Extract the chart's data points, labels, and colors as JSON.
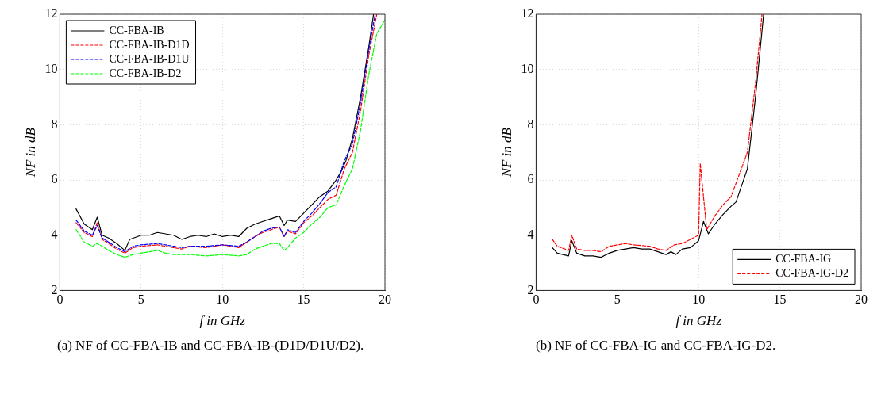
{
  "chart_data": [
    {
      "type": "line",
      "xlabel": "f in GHz",
      "ylabel": "NF in dB",
      "xlim": [
        0,
        20
      ],
      "ylim": [
        2,
        12
      ],
      "xticks": [
        0,
        5,
        10,
        15,
        20
      ],
      "yticks": [
        2,
        4,
        6,
        8,
        10,
        12
      ],
      "grid": true,
      "legend": "top left",
      "annotations": [
        "(a) NF of CC-FBA-IB and CC-FBA-IB-(D1D/D1U/D2)."
      ],
      "series": [
        {
          "name": "CC-FBA-IB",
          "color": "#000000",
          "line_style": "solid",
          "x": [
            1,
            1.5,
            2,
            2.3,
            2.6,
            3,
            3.5,
            4,
            4.3,
            5,
            5.5,
            6,
            6.5,
            7,
            7.5,
            8,
            8.5,
            9,
            9.5,
            10,
            10.5,
            11,
            11.5,
            12,
            12.5,
            13,
            13.5,
            13.8,
            14,
            14.5,
            15,
            15.5,
            16,
            16.5,
            17,
            17.3,
            17.6,
            18,
            18.5,
            19,
            19.3
          ],
          "values": [
            4.95,
            4.4,
            4.2,
            4.65,
            4.0,
            3.9,
            3.7,
            3.45,
            3.85,
            4.0,
            4.0,
            4.1,
            4.05,
            4.0,
            3.85,
            3.95,
            4.0,
            3.95,
            4.05,
            3.95,
            4.0,
            3.95,
            4.25,
            4.4,
            4.5,
            4.6,
            4.7,
            4.35,
            4.55,
            4.5,
            4.8,
            5.1,
            5.4,
            5.6,
            6.0,
            6.3,
            6.7,
            7.5,
            9.0,
            10.8,
            12
          ]
        },
        {
          "name": "CC-FBA-IB-D1D",
          "color": "#ff0000",
          "line_style": "dashed",
          "x": [
            1,
            1.5,
            2,
            2.3,
            2.6,
            3,
            3.5,
            4,
            4.5,
            5,
            6,
            6.5,
            7,
            7.5,
            8,
            9,
            10,
            11,
            11.5,
            12,
            12.5,
            13,
            13.5,
            13.8,
            14,
            14.5,
            15,
            15.5,
            16,
            16.5,
            17,
            17.5,
            18,
            18.5,
            19,
            19.5
          ],
          "values": [
            4.45,
            4.1,
            3.95,
            4.45,
            3.85,
            3.7,
            3.5,
            3.35,
            3.55,
            3.6,
            3.65,
            3.6,
            3.55,
            3.5,
            3.6,
            3.55,
            3.65,
            3.55,
            3.75,
            3.95,
            4.1,
            4.2,
            4.3,
            3.95,
            4.15,
            4.05,
            4.45,
            4.7,
            5.0,
            5.3,
            5.45,
            6.4,
            7.0,
            8.5,
            10.5,
            12
          ]
        },
        {
          "name": "CC-FBA-IB-D1U",
          "color": "#0000ff",
          "line_style": "dashed",
          "x": [
            1,
            1.5,
            2,
            2.3,
            2.6,
            3,
            3.5,
            4,
            4.5,
            5,
            6,
            6.5,
            7,
            7.5,
            8,
            9,
            10,
            11,
            11.5,
            12,
            12.5,
            13,
            13.5,
            13.8,
            14,
            14.5,
            15,
            15.5,
            16,
            16.5,
            17,
            17.5,
            18,
            18.5,
            19,
            19.4
          ],
          "values": [
            4.55,
            4.15,
            4.0,
            4.35,
            3.9,
            3.75,
            3.55,
            3.4,
            3.6,
            3.65,
            3.7,
            3.65,
            3.6,
            3.55,
            3.6,
            3.6,
            3.65,
            3.6,
            3.75,
            3.95,
            4.15,
            4.25,
            4.3,
            3.95,
            4.2,
            4.1,
            4.5,
            4.8,
            5.15,
            5.55,
            5.75,
            6.7,
            7.3,
            8.8,
            10.7,
            12
          ]
        },
        {
          "name": "CC-FBA-IB-D2",
          "color": "#00ff00",
          "line_style": "dashed",
          "x": [
            1,
            1.5,
            2,
            2.3,
            2.6,
            3,
            3.5,
            4,
            4.5,
            5,
            6,
            6.5,
            7,
            8,
            9,
            10,
            11,
            11.5,
            12,
            12.5,
            13,
            13.5,
            13.8,
            14,
            14.5,
            15,
            15.5,
            16,
            16.5,
            17,
            17.5,
            18,
            18.5,
            19,
            19.5,
            20
          ],
          "values": [
            4.2,
            3.75,
            3.6,
            3.7,
            3.6,
            3.45,
            3.3,
            3.2,
            3.3,
            3.35,
            3.45,
            3.35,
            3.3,
            3.3,
            3.25,
            3.3,
            3.25,
            3.3,
            3.5,
            3.6,
            3.7,
            3.7,
            3.45,
            3.55,
            3.9,
            4.1,
            4.4,
            4.65,
            5.0,
            5.1,
            5.8,
            6.4,
            7.8,
            9.8,
            11.3,
            11.8
          ]
        }
      ]
    },
    {
      "type": "line",
      "xlabel": "f in GHz",
      "ylabel": "NF in dB",
      "xlim": [
        0,
        20
      ],
      "ylim": [
        2,
        12
      ],
      "xticks": [
        0,
        5,
        10,
        15,
        20
      ],
      "yticks": [
        2,
        4,
        6,
        8,
        10,
        12
      ],
      "grid": true,
      "legend": "bottom right",
      "annotations": [
        "(b) NF of CC-FBA-IG and CC-FBA-IG-D2."
      ],
      "series": [
        {
          "name": "CC-FBA-IG",
          "color": "#000000",
          "line_style": "solid",
          "x": [
            1,
            1.3,
            2,
            2.2,
            2.5,
            3,
            3.5,
            4,
            4.5,
            5,
            5.5,
            6,
            6.5,
            7,
            7.5,
            8,
            8.3,
            8.6,
            9,
            9.5,
            10,
            10.3,
            10.6,
            11,
            11.5,
            12,
            12.3,
            13,
            13.5,
            14
          ],
          "values": [
            3.55,
            3.35,
            3.25,
            3.8,
            3.35,
            3.25,
            3.25,
            3.2,
            3.35,
            3.45,
            3.5,
            3.55,
            3.5,
            3.5,
            3.4,
            3.3,
            3.4,
            3.3,
            3.5,
            3.55,
            3.8,
            4.5,
            4.05,
            4.4,
            4.75,
            5.05,
            5.2,
            6.4,
            9.0,
            12
          ]
        },
        {
          "name": "CC-FBA-IG-D2",
          "color": "#ff0000",
          "line_style": "dashed",
          "x": [
            1,
            1.3,
            2,
            2.2,
            2.5,
            3,
            3.5,
            4,
            4.5,
            5,
            5.5,
            6,
            7,
            7.5,
            8,
            8.5,
            9,
            10,
            10.1,
            10.5,
            11,
            11.5,
            12,
            12.5,
            13,
            13.5,
            13.9
          ],
          "values": [
            3.85,
            3.6,
            3.45,
            4.0,
            3.5,
            3.45,
            3.45,
            3.4,
            3.6,
            3.65,
            3.7,
            3.65,
            3.6,
            3.5,
            3.45,
            3.65,
            3.7,
            4.0,
            6.6,
            4.2,
            4.7,
            5.1,
            5.4,
            6.2,
            7.0,
            9.5,
            12
          ]
        }
      ]
    }
  ]
}
